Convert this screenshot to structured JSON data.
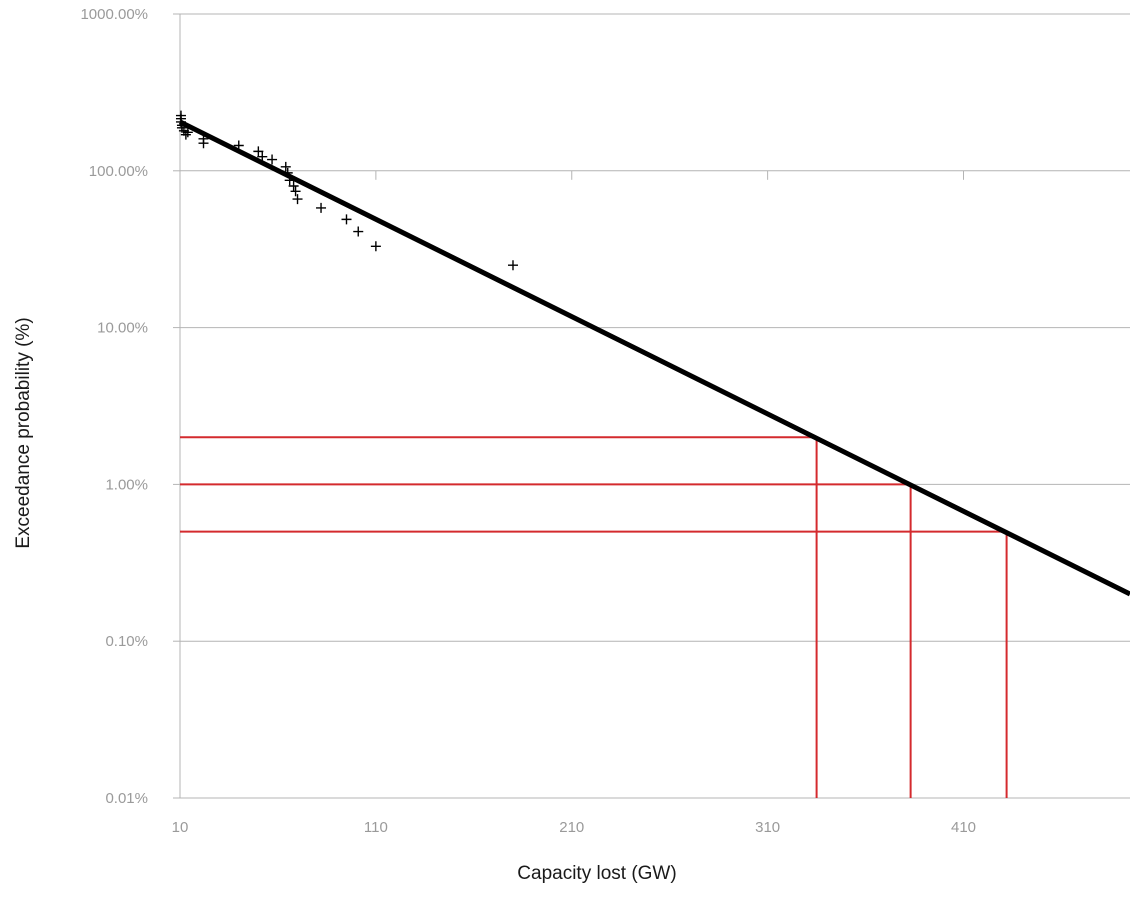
{
  "chart_data": {
    "type": "scatter",
    "title": "",
    "xlabel": "Capacity lost (GW)",
    "ylabel": "Exceedance probability (%)",
    "x_scale": "linear",
    "y_scale": "log",
    "xlim": [
      10,
      495
    ],
    "ylim": [
      0.01,
      1000
    ],
    "x_ticks": [
      10,
      110,
      210,
      310,
      410
    ],
    "x_tick_labels": [
      "10",
      "110",
      "210",
      "310",
      "410"
    ],
    "y_ticks": [
      0.01,
      0.1,
      1,
      10,
      100,
      1000
    ],
    "y_tick_labels": [
      "0.01%",
      "0.10%",
      "1.00%",
      "10.00%",
      "100.00%",
      "1000.00%"
    ],
    "grid": "horizontal",
    "legend": "none",
    "series": [
      {
        "kind": "scatter",
        "marker": "plus",
        "color": "#000000",
        "points": [
          [
            10.5,
            225
          ],
          [
            10.5,
            215
          ],
          [
            10.5,
            205
          ],
          [
            11,
            195
          ],
          [
            11,
            188
          ],
          [
            12,
            180
          ],
          [
            13,
            170
          ],
          [
            14,
            176
          ],
          [
            22,
            160
          ],
          [
            22,
            150
          ],
          [
            40,
            145
          ],
          [
            50,
            133
          ],
          [
            52,
            123
          ],
          [
            57,
            118
          ],
          [
            64,
            106
          ],
          [
            65,
            97
          ],
          [
            66,
            87
          ],
          [
            68,
            80
          ],
          [
            69,
            74
          ],
          [
            70,
            66
          ],
          [
            82,
            58
          ],
          [
            95,
            49
          ],
          [
            101,
            41
          ],
          [
            110,
            33
          ],
          [
            180,
            25
          ]
        ]
      },
      {
        "kind": "line",
        "color": "#000000",
        "points": [
          [
            10,
            205
          ],
          [
            495,
            0.2
          ]
        ]
      }
    ],
    "reference_lines": {
      "color": "#d42a2e",
      "horizontal": [
        {
          "y": 2.0,
          "x_end": 335
        },
        {
          "y": 1.0,
          "x_end": 383
        },
        {
          "y": 0.5,
          "x_end": 432
        }
      ],
      "vertical": [
        {
          "x": 335,
          "y_end": 2.0
        },
        {
          "x": 383,
          "y_end": 1.0
        },
        {
          "x": 432,
          "y_end": 0.5
        }
      ]
    }
  }
}
